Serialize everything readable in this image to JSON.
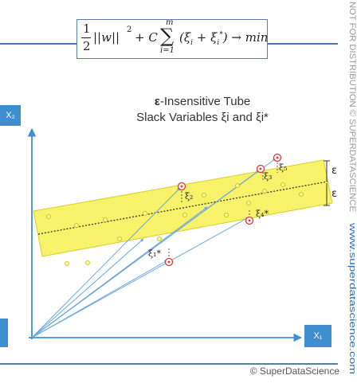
{
  "formula": {
    "half": "1",
    "two": "2",
    "norm": "||w||",
    "sq": "2",
    "plus_c": "+ C",
    "sum": "∑",
    "sum_top": "m",
    "sum_bottom": "i=1",
    "term": "(ξ",
    "term_sub_i": "i",
    "term_plus": " + ξ",
    "term_star": "*",
    "term_end": ") → min"
  },
  "caption": {
    "line1_symbol": "ε",
    "line1_rest": "-Insensitive Tube",
    "line2": "Slack Variables ξi and ξi*"
  },
  "axes": {
    "y_label": "X₂",
    "x_label": "X₁"
  },
  "points": {
    "xi2": "ξ₂",
    "xi3": "ξ₃",
    "xi5": "ξ₅",
    "xi1star": "ξ₁*",
    "xi4star": "ξ₄*",
    "eps_top": "ε",
    "eps_bottom": "ε"
  },
  "watermark": {
    "text_gray": "NOT FOR DISTRIBUTION © SUPERDATASCIENCE",
    "text_blue": "www.superdatascience.com"
  },
  "copyright": "© SuperDataScience",
  "colors": {
    "accent": "#3e8ed0",
    "tube": "#f7f26a",
    "tube_border": "#d8cf2a",
    "point_red": "#e3342f"
  }
}
